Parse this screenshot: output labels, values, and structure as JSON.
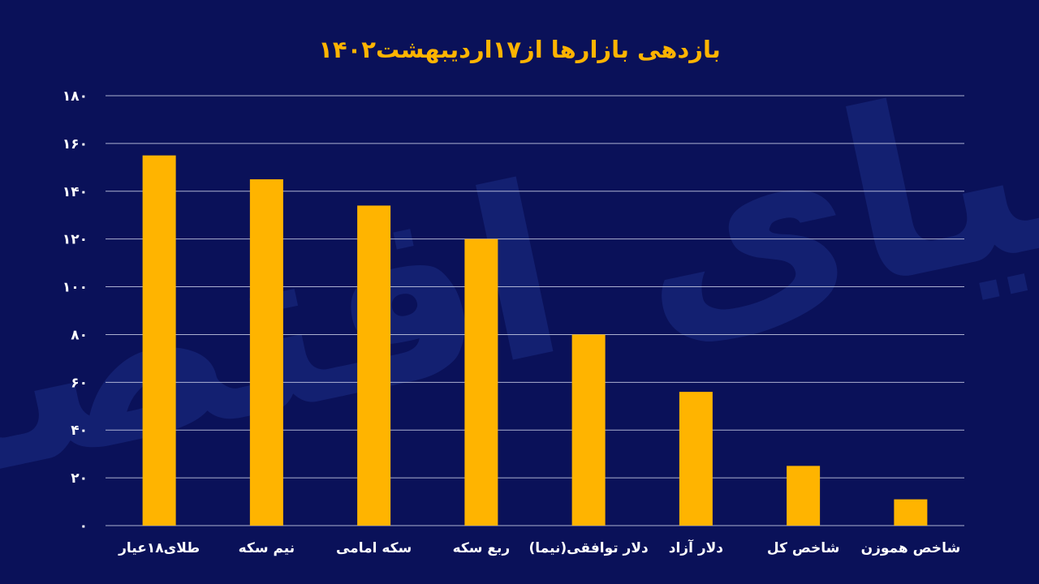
{
  "chart_data": {
    "type": "bar",
    "title": "بازدهی بازارها از۱۷اردیبهشت۱۴۰۲",
    "categories": [
      "طلای۱۸عیار",
      "نیم سکه",
      "سکه امامی",
      "ربع سکه",
      "دلار توافقی(نیما)",
      "دلار آزاد",
      "شاخص کل",
      "شاخص هموزن"
    ],
    "values": [
      155,
      145,
      134,
      120,
      80,
      56,
      25,
      11
    ],
    "ylim": [
      0,
      180
    ],
    "yticks": [
      0,
      20,
      40,
      60,
      80,
      100,
      120,
      140,
      160,
      180
    ],
    "ytick_labels": [
      "۰",
      "۲۰",
      "۴۰",
      "۶۰",
      "۸۰",
      "۱۰۰",
      "۱۲۰",
      "۱۴۰",
      "۱۶۰",
      "۱۸۰"
    ],
    "xlabel": "",
    "ylabel": "",
    "grid": true,
    "colors": {
      "background": "#0a1159",
      "bar": "#ffb400",
      "title": "#ffb400",
      "text": "#ffffff",
      "grid": "#c9cde6"
    }
  },
  "watermark": "دنیای اقتصاد"
}
